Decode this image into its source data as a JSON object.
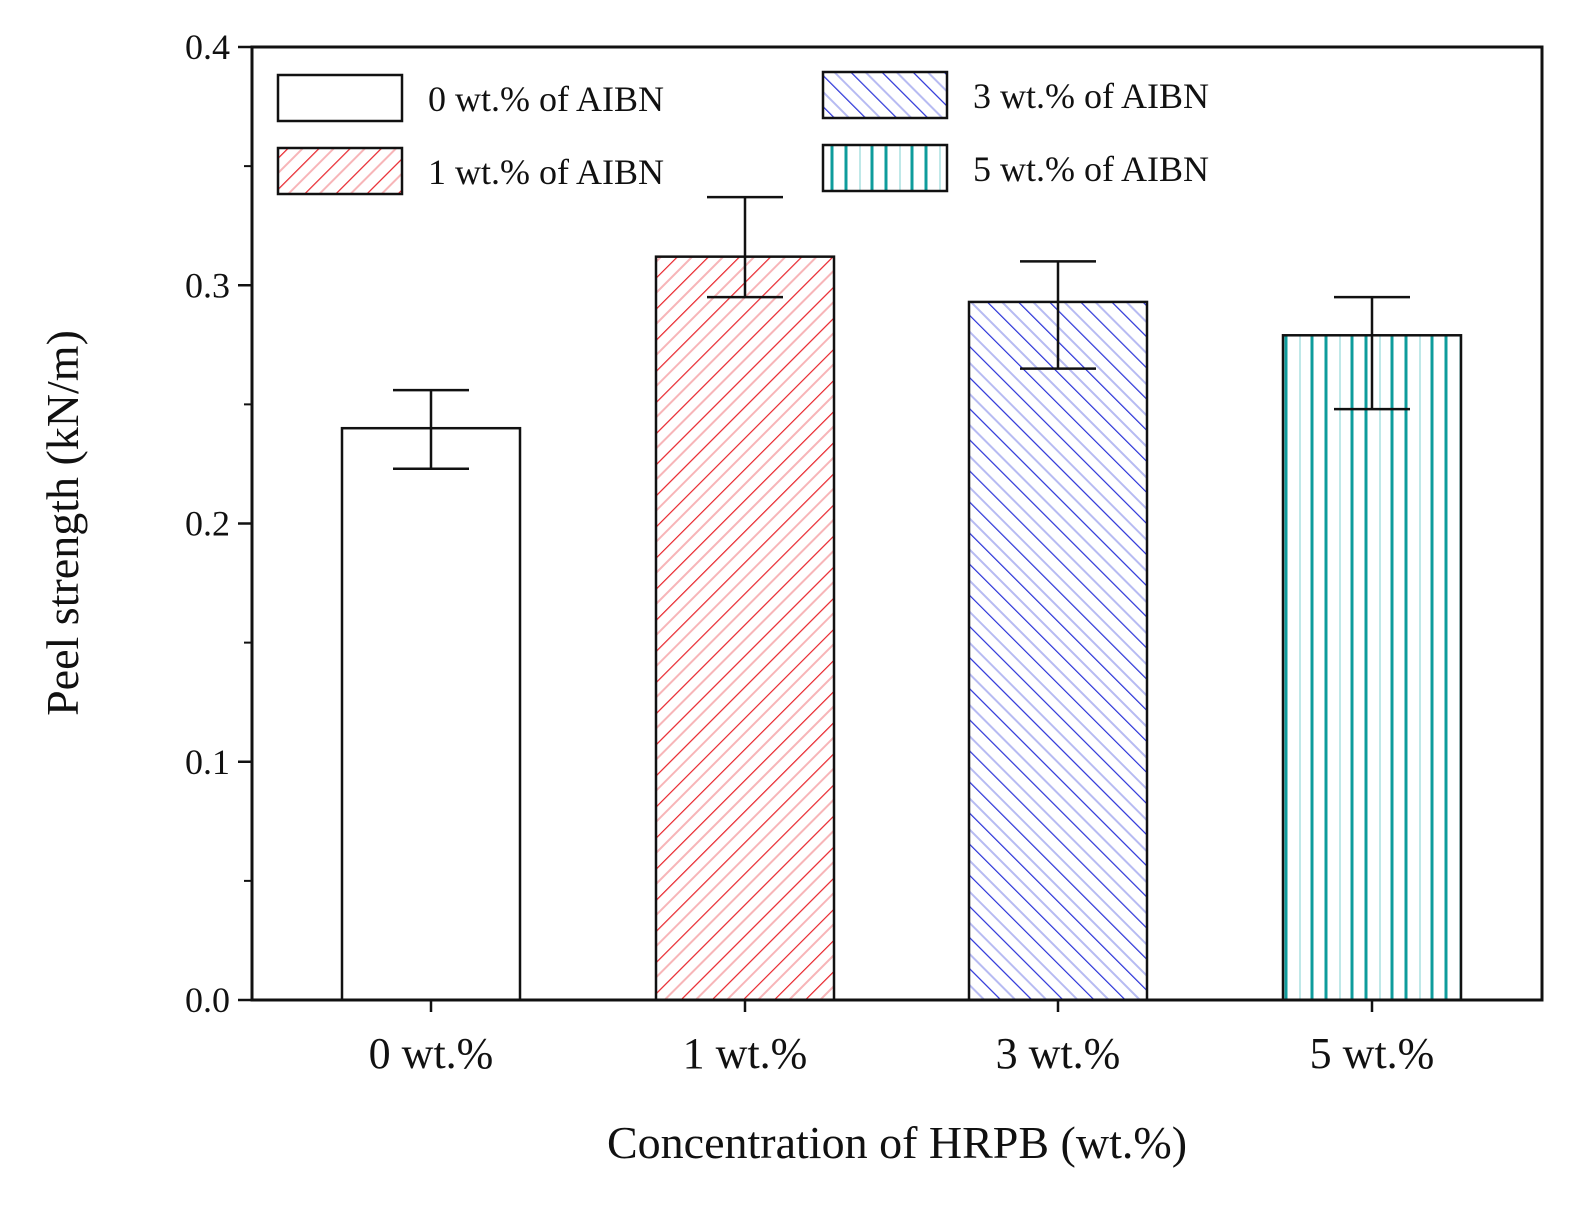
{
  "chart_data": {
    "type": "bar",
    "title": "",
    "xlabel": "Concentration of HRPB (wt.%)",
    "ylabel": "Peel strength (kN/m)",
    "ylim": [
      0,
      0.4
    ],
    "yticks": [
      "0.0",
      "0.1",
      "0.2",
      "0.3",
      "0.4"
    ],
    "ytick_values": [
      0,
      0.1,
      0.2,
      0.3,
      0.4
    ],
    "categories": [
      "0 wt.%",
      "1 wt.%",
      "3 wt.%",
      "5 wt.%"
    ],
    "values": [
      0.24,
      0.312,
      0.293,
      0.279
    ],
    "errors": [
      {
        "low": 0.223,
        "high": 0.256
      },
      {
        "low": 0.295,
        "high": 0.337
      },
      {
        "low": 0.265,
        "high": 0.31
      },
      {
        "low": 0.248,
        "high": 0.295
      }
    ],
    "legend": [
      {
        "label": "0 wt.% of AIBN",
        "color": "#111111",
        "pattern": "none"
      },
      {
        "label": "1 wt.% of AIBN",
        "color": "#e8242b",
        "pattern": "diagonal-up"
      },
      {
        "label": "3 wt.% of AIBN",
        "color": "#2a32d8",
        "pattern": "diagonal-down"
      },
      {
        "label": "5 wt.% of AIBN",
        "color": "#0f9c9c",
        "pattern": "vertical"
      }
    ],
    "legend_position": "top-left"
  }
}
